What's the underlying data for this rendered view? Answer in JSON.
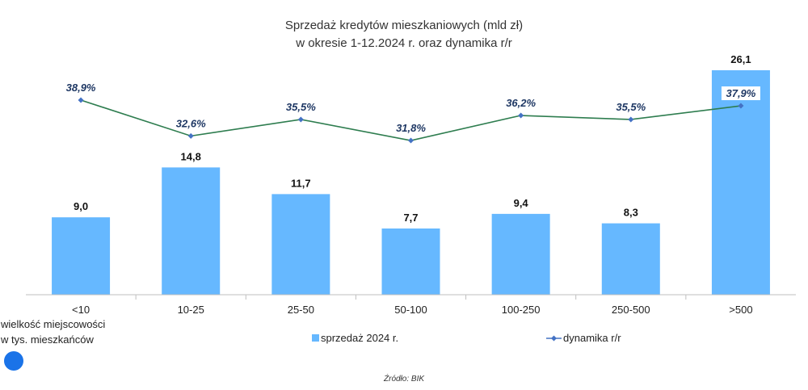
{
  "chart_data": {
    "type": "bar",
    "title": "Sprzedaż kredytów mieszkaniowych (mld zł)",
    "subtitle": "w okresie 1-12.2024 r. oraz dynamika r/r",
    "categories": [
      "<10",
      "10-25",
      "25-50",
      "50-100",
      "100-250",
      "250-500",
      ">500"
    ],
    "series": [
      {
        "name": "sprzedaż 2024 r.",
        "type": "bar",
        "values": [
          9.0,
          14.8,
          11.7,
          7.7,
          9.4,
          8.3,
          26.1
        ],
        "labels": [
          "9,0",
          "14,8",
          "11,7",
          "7,7",
          "9,4",
          "8,3",
          "26,1"
        ],
        "color": "#66b8ff"
      },
      {
        "name": "dynamika r/r",
        "type": "line",
        "values": [
          38.9,
          32.6,
          35.5,
          31.8,
          36.2,
          35.5,
          37.9
        ],
        "labels": [
          "38,9%",
          "32,6%",
          "35,5%",
          "31,8%",
          "36,2%",
          "35,5%",
          "37,9%"
        ],
        "color": "#2e7d4f",
        "marker_color": "#4472c4"
      }
    ],
    "category_axis_note": [
      "wielkość miejscowości",
      "w tys. mieszkańców"
    ],
    "grid": false,
    "legend_position": "bottom"
  },
  "source": "Źródło: BIK",
  "colors": {
    "bar": "#66b8ff",
    "line": "#2e7d4f",
    "marker": "#4472c4",
    "dot": "#1a73e8"
  }
}
